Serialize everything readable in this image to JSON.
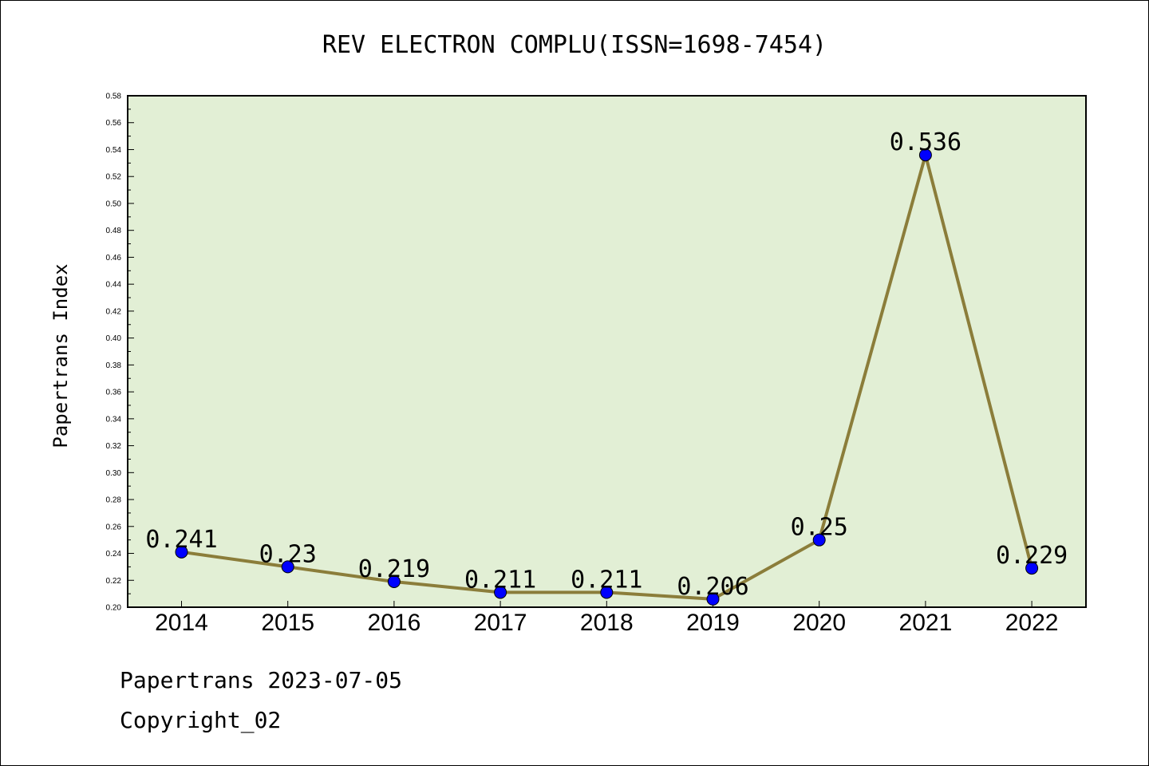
{
  "chart_data": {
    "type": "line",
    "title": "REV ELECTRON COMPLU(ISSN=1698-7454)",
    "xlabel": "",
    "ylabel": "Papertrans Index",
    "categories": [
      "2014",
      "2015",
      "2016",
      "2017",
      "2018",
      "2019",
      "2020",
      "2021",
      "2022"
    ],
    "series": [
      {
        "values": [
          0.241,
          0.23,
          0.219,
          0.211,
          0.211,
          0.206,
          0.25,
          0.536,
          0.229
        ],
        "labels": [
          "0.241",
          "0.23",
          "0.219",
          "0.211",
          "0.211",
          "0.206",
          "0.25",
          "0.536",
          "0.229"
        ]
      }
    ],
    "ylim": [
      0.2,
      0.58
    ],
    "yticks": [
      "0.20",
      "0.22",
      "0.24",
      "0.26",
      "0.28",
      "0.30",
      "0.32",
      "0.34",
      "0.36",
      "0.38",
      "0.40",
      "0.42",
      "0.44",
      "0.46",
      "0.48",
      "0.50",
      "0.52",
      "0.54",
      "0.56",
      "0.58"
    ],
    "grid": false,
    "legend": "none",
    "colors": {
      "plot_background": "#e2efd5",
      "line": "#8b7d3a",
      "marker": "#0000ff"
    }
  },
  "footer": {
    "line1": "Papertrans 2023-07-05",
    "line2": "Copyright_02"
  }
}
